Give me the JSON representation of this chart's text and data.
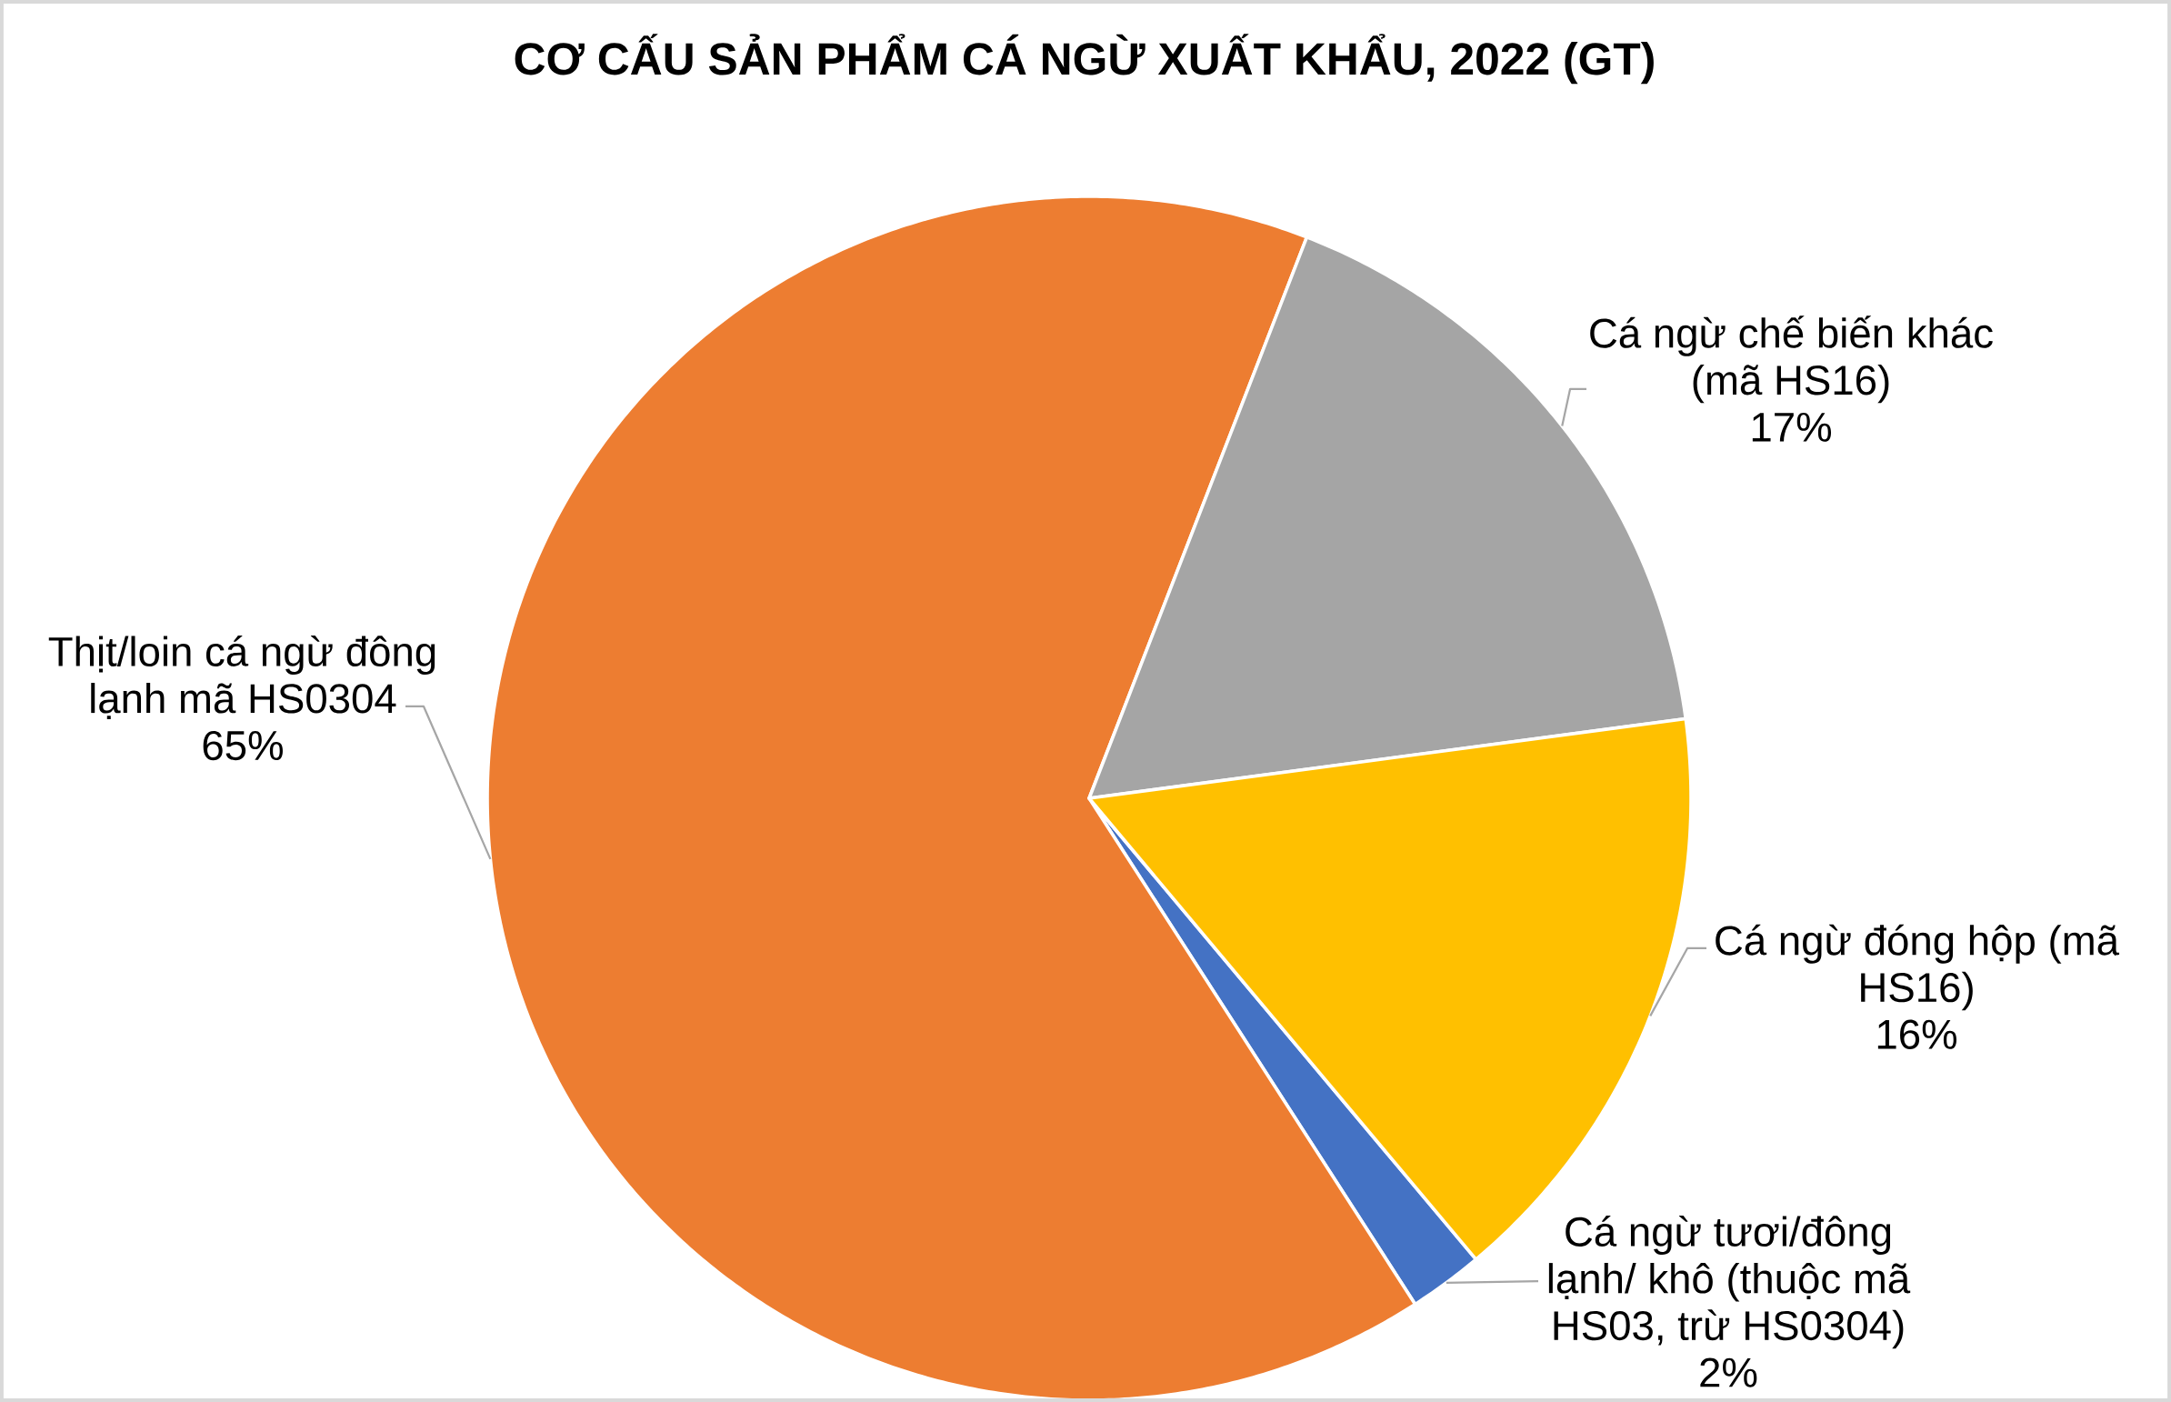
{
  "chart_data": {
    "type": "pie",
    "title": "CƠ CẤU SẢN PHẨM CÁ NGỪ XUẤT KHẨU, 2022 (GT)",
    "categories": [
      "Cá ngừ tươi/đông lạnh/ khô (thuộc mã HS03, trừ HS0304)",
      "Thịt/loin cá ngừ đông lạnh mã HS0304",
      "Cá ngừ chế biến khác (mã HS16)",
      "Cá ngừ đóng hộp (mã HS16)"
    ],
    "values": [
      2,
      65,
      17,
      16
    ],
    "value_labels": [
      "2%",
      "65%",
      "17%",
      "16%"
    ],
    "colors": [
      "#4472c4",
      "#ed7d31",
      "#a5a5a5",
      "#ffc000"
    ]
  }
}
